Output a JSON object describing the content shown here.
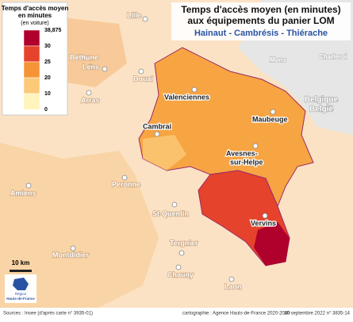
{
  "header": {
    "title_line1": "Temps d'accès moyen (en minutes)",
    "title_line2": "aux équipements du panier LOM",
    "subtitle": "Hainaut - Cambrésis - Thiérache"
  },
  "legend": {
    "title_lines": [
      "Temps d'accès moyen",
      "en minutes",
      "(en voiture)"
    ],
    "labels": [
      "38,875",
      "30",
      "25",
      "20",
      "10",
      "0"
    ],
    "colors": [
      "#b0002c",
      "#e5432b",
      "#f59436",
      "#fbc978",
      "#fef4bc"
    ]
  },
  "places": {
    "cities": [
      "Lille",
      "Béthune",
      "Lens",
      "Douai",
      "Arras",
      "Valenciennes",
      "Cambrai",
      "Maubeuge",
      "Avesnes-",
      "sur-Helpe",
      "Peronne",
      "Amiens",
      "St-Quentin",
      "Vervins",
      "Montdidier",
      "Tergnier",
      "Chauny",
      "Laon",
      "Mons",
      "Charleroi"
    ],
    "country": [
      "Belgique",
      "België"
    ]
  },
  "scale": "10 km",
  "logo": [
    "Région",
    "Hauts-de-France"
  ],
  "footer": {
    "sources": "Sources : Insee (d'après carte n° 3935-01)",
    "credit": "cartographie : Agence Hauts-de-France 2020-2040",
    "date": "20 septembre 2022 n° 3835-14"
  }
}
